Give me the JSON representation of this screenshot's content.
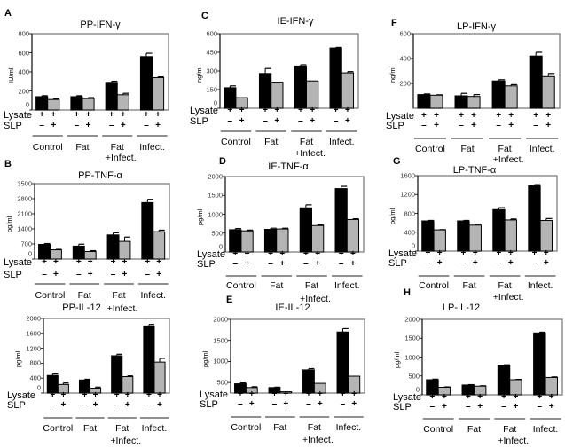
{
  "row_labels": {
    "lysate": "Lysate",
    "slp": "SLP"
  },
  "lysate_signs": [
    "+",
    "+"
  ],
  "slp_signs": [
    "–",
    "+"
  ],
  "colors": {
    "lysate_only": "#000000",
    "lysate_slp": "#b4b4b4",
    "axis": "#808080"
  },
  "chart_data": [
    {
      "type": "bar",
      "letter": "A",
      "title": "PP-IFN-γ",
      "ylabel": "IU/ml",
      "ylim": [
        0,
        800
      ],
      "yticks": [
        "0",
        "200",
        "400",
        "600",
        "800"
      ],
      "ytick_values": [
        0,
        200,
        400,
        600,
        800
      ],
      "categories": [
        [
          "Control"
        ],
        [
          "Fat"
        ],
        [
          "Fat",
          "+Infect."
        ],
        [
          "Infect."
        ]
      ],
      "series": [
        {
          "name": "Lysate +, SLP –",
          "values": [
            140,
            140,
            290,
            560
          ],
          "errors": [
            10,
            10,
            12,
            35
          ]
        },
        {
          "name": "Lysate +, SLP +",
          "values": [
            110,
            120,
            160,
            340
          ],
          "errors": [
            8,
            10,
            15,
            8
          ]
        }
      ]
    },
    {
      "type": "bar",
      "letter": "B",
      "title": "PP-TNF-α",
      "ylabel": "pg/ml",
      "ylim": [
        0,
        3500
      ],
      "yticks": [
        "0",
        "700",
        "1400",
        "2100",
        "2800",
        "3500"
      ],
      "ytick_values": [
        0,
        700,
        1400,
        2100,
        2800,
        3500
      ],
      "categories": [
        [
          "Control"
        ],
        [
          "Fat"
        ],
        [
          "Fat",
          "+Infect."
        ],
        [
          "Infect."
        ]
      ],
      "series": [
        {
          "name": "Lysate +, SLP –",
          "values": [
            680,
            600,
            1120,
            2620
          ],
          "errors": [
            40,
            90,
            100,
            150
          ]
        },
        {
          "name": "Lysate +, SLP +",
          "values": [
            430,
            350,
            820,
            1270
          ],
          "errors": [
            20,
            40,
            200,
            70
          ]
        }
      ]
    },
    {
      "type": "bar",
      "letter": "",
      "title": "PP-IL-12",
      "ylabel": "pg/ml",
      "ylim": [
        0,
        2000
      ],
      "yticks": [
        "0",
        "400",
        "800",
        "1200",
        "1600",
        "2000"
      ],
      "ytick_values": [
        0,
        400,
        800,
        1200,
        1600,
        2000
      ],
      "categories": [
        [
          "Control"
        ],
        [
          "Fat"
        ],
        [
          "Fat",
          "+Infect."
        ],
        [
          "Infect."
        ]
      ],
      "series": [
        {
          "name": "Lysate +, SLP –",
          "values": [
            470,
            350,
            1000,
            1800
          ],
          "errors": [
            40,
            20,
            40,
            40
          ]
        },
        {
          "name": "Lysate +, SLP +",
          "values": [
            230,
            130,
            440,
            830
          ],
          "errors": [
            40,
            30,
            20,
            100
          ]
        }
      ]
    },
    {
      "type": "bar",
      "letter": "C",
      "title": "IE-IFN-γ",
      "ylabel": "ng/ml",
      "ylim": [
        0,
        600
      ],
      "yticks": [
        "0",
        "150",
        "300",
        "450",
        "600"
      ],
      "ytick_values": [
        0,
        150,
        300,
        450,
        600
      ],
      "categories": [
        [
          "Control"
        ],
        [
          "Fat"
        ],
        [
          "Fat",
          "+Infect."
        ],
        [
          "Infect."
        ]
      ],
      "series": [
        {
          "name": "Lysate +, SLP –",
          "values": [
            165,
            280,
            340,
            485
          ],
          "errors": [
            15,
            40,
            10,
            5
          ]
        },
        {
          "name": "Lysate +, SLP +",
          "values": [
            85,
            210,
            220,
            285
          ],
          "errors": [
            0,
            0,
            0,
            10
          ]
        }
      ]
    },
    {
      "type": "bar",
      "letter": "D",
      "title": "IE-TNF-α",
      "ylabel": "pg/ml",
      "ylim": [
        0,
        2000
      ],
      "yticks": [
        "0",
        "500",
        "1000",
        "1500",
        "2000"
      ],
      "ytick_values": [
        0,
        500,
        1000,
        1500,
        2000
      ],
      "categories": [
        [
          "Control"
        ],
        [
          "Fat"
        ],
        [
          "Fat",
          "+Infect."
        ],
        [
          "Infect."
        ]
      ],
      "series": [
        {
          "name": "Lysate +, SLP –",
          "values": [
            590,
            600,
            1170,
            1680
          ],
          "errors": [
            30,
            30,
            80,
            60
          ]
        },
        {
          "name": "Lysate +, SLP +",
          "values": [
            560,
            610,
            700,
            860
          ],
          "errors": [
            20,
            20,
            20,
            20
          ]
        }
      ]
    },
    {
      "type": "bar",
      "letter": "E",
      "title": "IE-IL-12",
      "ylabel": "pg/ml",
      "ylim": [
        250,
        2000
      ],
      "yticks": [
        "500",
        "1000",
        "1500",
        "2000"
      ],
      "ytick_values": [
        500,
        1000,
        1500,
        2000
      ],
      "categories": [
        [
          "Control"
        ],
        [
          "Fat"
        ],
        [
          "Fat",
          "+Infect."
        ],
        [
          "Infect."
        ]
      ],
      "series": [
        {
          "name": "Lysate +, SLP –",
          "values": [
            470,
            380,
            800,
            1700
          ],
          "errors": [
            20,
            10,
            30,
            80
          ]
        },
        {
          "name": "Lysate +, SLP +",
          "values": [
            380,
            280,
            480,
            650
          ],
          "errors": [
            20,
            0,
            0,
            0
          ]
        }
      ]
    },
    {
      "type": "bar",
      "letter": "F",
      "title": "LP-IFN-γ",
      "ylabel": "ng/ml",
      "ylim": [
        0,
        600
      ],
      "yticks": [
        "200",
        "400",
        "600"
      ],
      "ytick_values": [
        200,
        400,
        600
      ],
      "categories": [
        [
          "Control"
        ],
        [
          "Fat"
        ],
        [
          "Fat",
          "+Infect."
        ],
        [
          "Infect."
        ]
      ],
      "series": [
        {
          "name": "Lysate +, SLP –",
          "values": [
            110,
            100,
            220,
            420
          ],
          "errors": [
            5,
            20,
            10,
            30
          ]
        },
        {
          "name": "Lysate +, SLP +",
          "values": [
            105,
            95,
            180,
            255
          ],
          "errors": [
            3,
            15,
            10,
            25
          ]
        }
      ]
    },
    {
      "type": "bar",
      "letter": "G",
      "title": "LP-TNF-α",
      "ylabel": "pg/ml",
      "ylim": [
        0,
        1600
      ],
      "yticks": [
        "0",
        "400",
        "800",
        "1200",
        "1600"
      ],
      "ytick_values": [
        0,
        400,
        800,
        1200,
        1600
      ],
      "categories": [
        [
          "Control"
        ],
        [
          "Fat"
        ],
        [
          "Fat",
          "+Infect."
        ],
        [
          "Infect."
        ]
      ],
      "series": [
        {
          "name": "Lysate +, SLP –",
          "values": [
            640,
            640,
            880,
            1390
          ],
          "errors": [
            10,
            10,
            40,
            20
          ]
        },
        {
          "name": "Lysate +, SLP +",
          "values": [
            450,
            550,
            660,
            650
          ],
          "errors": [
            5,
            20,
            20,
            40
          ]
        }
      ]
    },
    {
      "type": "bar",
      "letter": "H",
      "title": "LP-IL-12",
      "ylabel": "pg/ml",
      "ylim": [
        0,
        2000
      ],
      "yticks": [
        "0",
        "500",
        "1000",
        "1500",
        "2000"
      ],
      "ytick_values": [
        0,
        500,
        1000,
        1500,
        2000
      ],
      "categories": [
        [
          "Control"
        ],
        [
          "Fat"
        ],
        [
          "Fat",
          "+Infect."
        ],
        [
          "Infect."
        ]
      ],
      "series": [
        {
          "name": "Lysate +, SLP –",
          "values": [
            400,
            260,
            780,
            1640
          ],
          "errors": [
            15,
            10,
            15,
            20
          ]
        },
        {
          "name": "Lysate +, SLP +",
          "values": [
            200,
            230,
            400,
            460
          ],
          "errors": [
            10,
            10,
            10,
            15
          ]
        }
      ]
    }
  ]
}
